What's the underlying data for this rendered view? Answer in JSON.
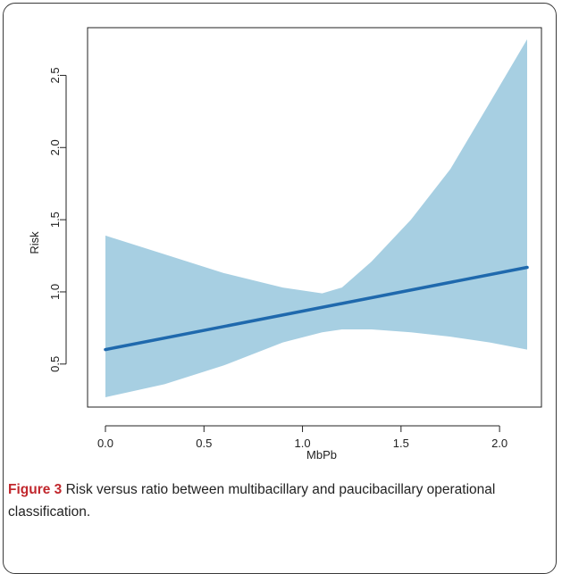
{
  "caption": {
    "label": "Figure 3",
    "text": " Risk versus ratio between multibacillary and paucibacillary operational classification."
  },
  "colors": {
    "band": "#a7cfe2",
    "line": "#1f69ad",
    "axis": "#222222"
  },
  "chart_data": {
    "type": "line",
    "title": "",
    "xlabel": "MbPb",
    "ylabel": "Risk",
    "xlim": [
      0,
      2.14
    ],
    "ylim": [
      0.27,
      2.75
    ],
    "xticks": [
      0.0,
      0.5,
      1.0,
      1.5,
      2.0
    ],
    "xtick_labels": [
      "0.0",
      "0.5",
      "1.0",
      "1.5",
      "2.0"
    ],
    "yticks": [
      0.5,
      1.0,
      1.5,
      2.0,
      2.5
    ],
    "ytick_labels": [
      "0.5",
      "1.0",
      "1.5",
      "2.0",
      "2.5"
    ],
    "grid": false,
    "series": [
      {
        "role": "fit",
        "x": [
          0.0,
          2.14
        ],
        "y": [
          0.6,
          1.17
        ]
      }
    ],
    "confidence_band": {
      "x": [
        0.0,
        0.3,
        0.6,
        0.9,
        1.1,
        1.2,
        1.35,
        1.55,
        1.75,
        1.95,
        2.14
      ],
      "upper": [
        1.39,
        1.26,
        1.13,
        1.03,
        0.99,
        1.03,
        1.21,
        1.5,
        1.85,
        2.31,
        2.75
      ],
      "lower": [
        0.27,
        0.36,
        0.49,
        0.65,
        0.72,
        0.74,
        0.74,
        0.72,
        0.69,
        0.65,
        0.6
      ]
    }
  }
}
